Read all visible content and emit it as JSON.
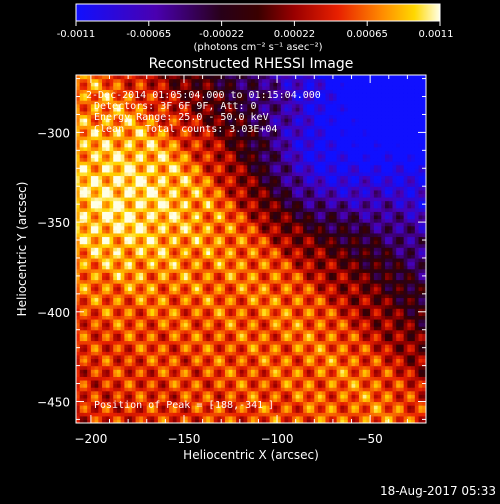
{
  "colorbar": {
    "tick_labels": [
      "-0.0011",
      "-0.00065",
      "-0.00022",
      "0.00022",
      "0.00065",
      "0.0011"
    ],
    "unit_label": "(photons cm⁻² s⁻¹ asec⁻²)",
    "range": [
      -0.0011,
      0.0011
    ]
  },
  "chart_data": {
    "type": "heatmap",
    "title": "Reconstructed RHESSI Image",
    "xlabel": "Heliocentric X (arcsec)",
    "ylabel": "Heliocentric Y (arcsec)",
    "xlim": [
      -208,
      -20
    ],
    "ylim": [
      -462,
      -268
    ],
    "x_ticks": [
      -200,
      -150,
      -100,
      -50
    ],
    "y_ticks": [
      -300,
      -350,
      -400,
      -450
    ],
    "x_tick_labels": [
      "−200",
      "−150",
      "−100",
      "−50"
    ],
    "y_tick_labels": [
      "−300",
      "−350",
      "−400",
      "−450"
    ],
    "peak_position": [
      -188,
      -341
    ],
    "annotations": {
      "time_range": "2-Dec-2014 01:05:04.000 to 01:15:04.000",
      "detectors": "Detectors: 3F 6F 9F, Att: 0",
      "energy": "Energy Range: 25.0 - 50.0 keV",
      "method": "Clean",
      "counts": "Total counts: 3.03E+04",
      "peak": "Position of Peak = [",
      "peak_value": "-188,-341",
      "peak_close": "]"
    }
  },
  "footer": {
    "timestamp": "18-Aug-2017 05:33"
  }
}
